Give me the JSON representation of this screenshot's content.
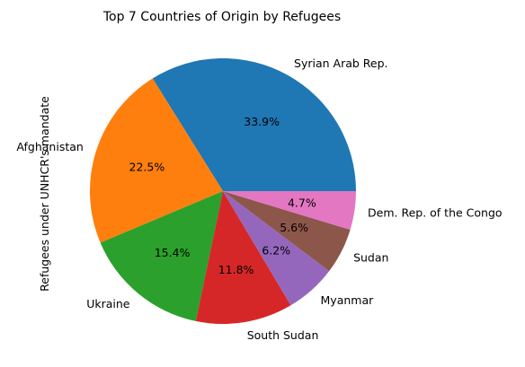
{
  "chart_data": {
    "type": "pie",
    "title": "Top 7 Countries of Origin by Refugees",
    "ylabel": "Refugees under UNHCR's mandate",
    "slices": [
      {
        "label": "Syrian Arab Rep.",
        "value": 33.9,
        "pct_label": "33.9%",
        "color": "#1f77b4"
      },
      {
        "label": "Afghanistan",
        "value": 22.5,
        "pct_label": "22.5%",
        "color": "#ff7f0e"
      },
      {
        "label": "Ukraine",
        "value": 15.4,
        "pct_label": "15.4%",
        "color": "#2ca02c"
      },
      {
        "label": "South Sudan",
        "value": 11.8,
        "pct_label": "11.8%",
        "color": "#d62728"
      },
      {
        "label": "Myanmar",
        "value": 6.2,
        "pct_label": "6.2%",
        "color": "#9467bd"
      },
      {
        "label": "Sudan",
        "value": 5.6,
        "pct_label": "5.6%",
        "color": "#8c564b"
      },
      {
        "label": "Dem. Rep. of the Congo",
        "value": 4.7,
        "pct_label": "4.7%",
        "color": "#e377c2"
      }
    ]
  }
}
